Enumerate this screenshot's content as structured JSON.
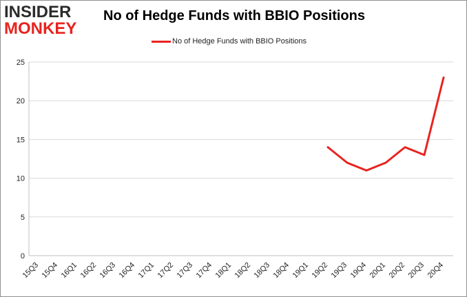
{
  "logo": {
    "line1": "INSIDER",
    "line2": "MONKEY"
  },
  "chart_data": {
    "type": "line",
    "title": "No of Hedge Funds with BBIO Positions",
    "xlabel": "",
    "ylabel": "",
    "ylim": [
      0,
      25
    ],
    "yticks": [
      0,
      5,
      10,
      15,
      20,
      25
    ],
    "grid": "horizontal",
    "legend_position": "top-center",
    "categories": [
      "15Q3",
      "15Q4",
      "16Q1",
      "16Q2",
      "16Q3",
      "16Q4",
      "17Q1",
      "17Q2",
      "17Q3",
      "17Q4",
      "18Q1",
      "18Q2",
      "18Q3",
      "18Q4",
      "19Q1",
      "19Q2",
      "19Q3",
      "19Q4",
      "20Q1",
      "20Q2",
      "20Q3",
      "20Q4"
    ],
    "series": [
      {
        "name": "No of Hedge Funds with BBIO Positions",
        "color": "#e8231f",
        "values": [
          null,
          null,
          null,
          null,
          null,
          null,
          null,
          null,
          null,
          null,
          null,
          null,
          null,
          null,
          null,
          14,
          12,
          11,
          12,
          14,
          13,
          23
        ]
      }
    ]
  }
}
